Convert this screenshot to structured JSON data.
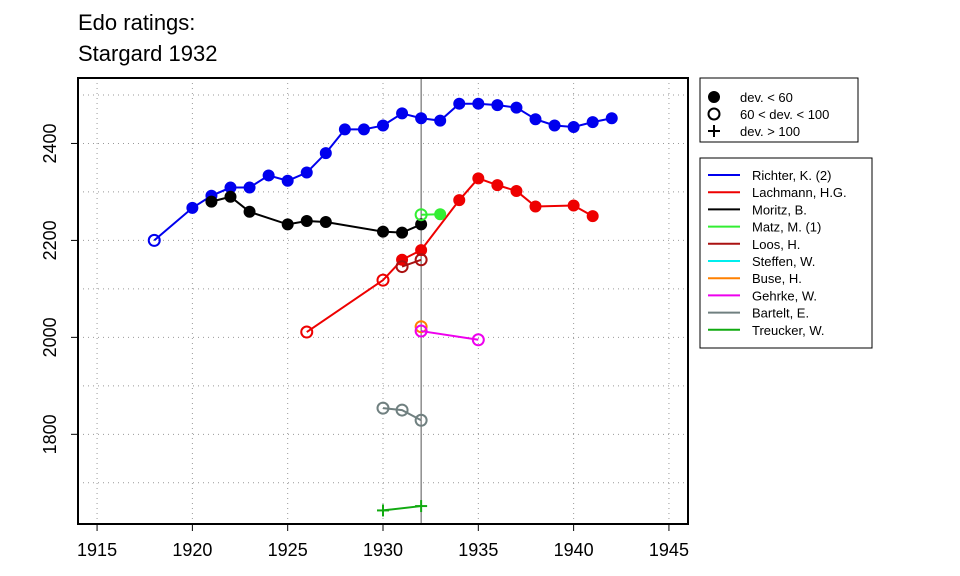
{
  "chart_data": {
    "type": "line",
    "title_lines": [
      "Edo ratings:",
      "Stargard 1932"
    ],
    "xlim": [
      1914,
      1946
    ],
    "ylim": [
      1615,
      2535
    ],
    "x_ticks": [
      1915,
      1920,
      1925,
      1930,
      1935,
      1940,
      1945
    ],
    "y_ticks": [
      1800,
      2000,
      2200,
      2400
    ],
    "grid": true,
    "vline_x": 1932,
    "deviation_legend": [
      {
        "marker": "filled",
        "label": "dev. < 60"
      },
      {
        "marker": "open",
        "label": "60 < dev. < 100"
      },
      {
        "marker": "plus",
        "label": "dev. > 100"
      }
    ],
    "series": [
      {
        "name": "Richter, K. (2)",
        "color": "#0000ee",
        "points": [
          [
            1918,
            2200,
            "open"
          ],
          [
            1920,
            2267,
            "filled"
          ],
          [
            1921,
            2292,
            "filled"
          ],
          [
            1922,
            2309,
            "filled"
          ],
          [
            1923,
            2309,
            "filled"
          ],
          [
            1924,
            2334,
            "filled"
          ],
          [
            1925,
            2323,
            "filled"
          ],
          [
            1926,
            2340,
            "filled"
          ],
          [
            1927,
            2380,
            "filled"
          ],
          [
            1928,
            2429,
            "filled"
          ],
          [
            1929,
            2429,
            "filled"
          ],
          [
            1930,
            2437,
            "filled"
          ],
          [
            1931,
            2462,
            "filled"
          ],
          [
            1932,
            2452,
            "filled"
          ],
          [
            1933,
            2447,
            "filled"
          ],
          [
            1934,
            2482,
            "filled"
          ],
          [
            1935,
            2482,
            "filled"
          ],
          [
            1936,
            2479,
            "filled"
          ],
          [
            1937,
            2474,
            "filled"
          ],
          [
            1938,
            2450,
            "filled"
          ],
          [
            1939,
            2437,
            "filled"
          ],
          [
            1940,
            2434,
            "filled"
          ],
          [
            1941,
            2444,
            "filled"
          ],
          [
            1942,
            2452,
            "filled"
          ]
        ]
      },
      {
        "name": "Lachmann, H.G.",
        "color": "#ee0000",
        "points": [
          [
            1926,
            2011,
            "open"
          ],
          [
            1930,
            2118,
            "open"
          ],
          [
            1931,
            2160,
            "filled"
          ],
          [
            1932,
            2180,
            "filled"
          ],
          [
            1934,
            2283,
            "filled"
          ],
          [
            1935,
            2328,
            "filled"
          ],
          [
            1936,
            2314,
            "filled"
          ],
          [
            1937,
            2302,
            "filled"
          ],
          [
            1938,
            2270,
            "filled"
          ],
          [
            1940,
            2272,
            "filled"
          ],
          [
            1941,
            2250,
            "filled"
          ]
        ]
      },
      {
        "name": "Moritz, B.",
        "color": "#000000",
        "points": [
          [
            1921,
            2280,
            "filled"
          ],
          [
            1922,
            2290,
            "filled"
          ],
          [
            1923,
            2259,
            "filled"
          ],
          [
            1925,
            2233,
            "filled"
          ],
          [
            1926,
            2240,
            "filled"
          ],
          [
            1927,
            2238,
            "filled"
          ],
          [
            1930,
            2218,
            "filled"
          ],
          [
            1931,
            2216,
            "filled"
          ],
          [
            1932,
            2233,
            "filled"
          ]
        ]
      },
      {
        "name": "Matz, M. (1)",
        "color": "#33ee33",
        "points": [
          [
            1932,
            2253,
            "open"
          ],
          [
            1933,
            2254,
            "filled"
          ]
        ]
      },
      {
        "name": "Loos, H.",
        "color": "#aa1111",
        "points": [
          [
            1931,
            2146,
            "open"
          ],
          [
            1932,
            2160,
            "open"
          ]
        ]
      },
      {
        "name": "Steffen, W.",
        "color": "#00eeee",
        "points": []
      },
      {
        "name": "Buse, H.",
        "color": "#ff8000",
        "points": [
          [
            1932,
            2022,
            "open"
          ]
        ]
      },
      {
        "name": "Gehrke, W.",
        "color": "#ee00ee",
        "points": [
          [
            1932,
            2013,
            "open"
          ],
          [
            1935,
            1995,
            "open"
          ]
        ]
      },
      {
        "name": "Bartelt, E.",
        "color": "#708080",
        "points": [
          [
            1930,
            1854,
            "open"
          ],
          [
            1931,
            1850,
            "open"
          ],
          [
            1932,
            1829,
            "open"
          ]
        ]
      },
      {
        "name": "Treucker, W.",
        "color": "#11aa11",
        "points": [
          [
            1930,
            1643,
            "plus"
          ],
          [
            1932,
            1652,
            "plus"
          ]
        ]
      }
    ]
  }
}
